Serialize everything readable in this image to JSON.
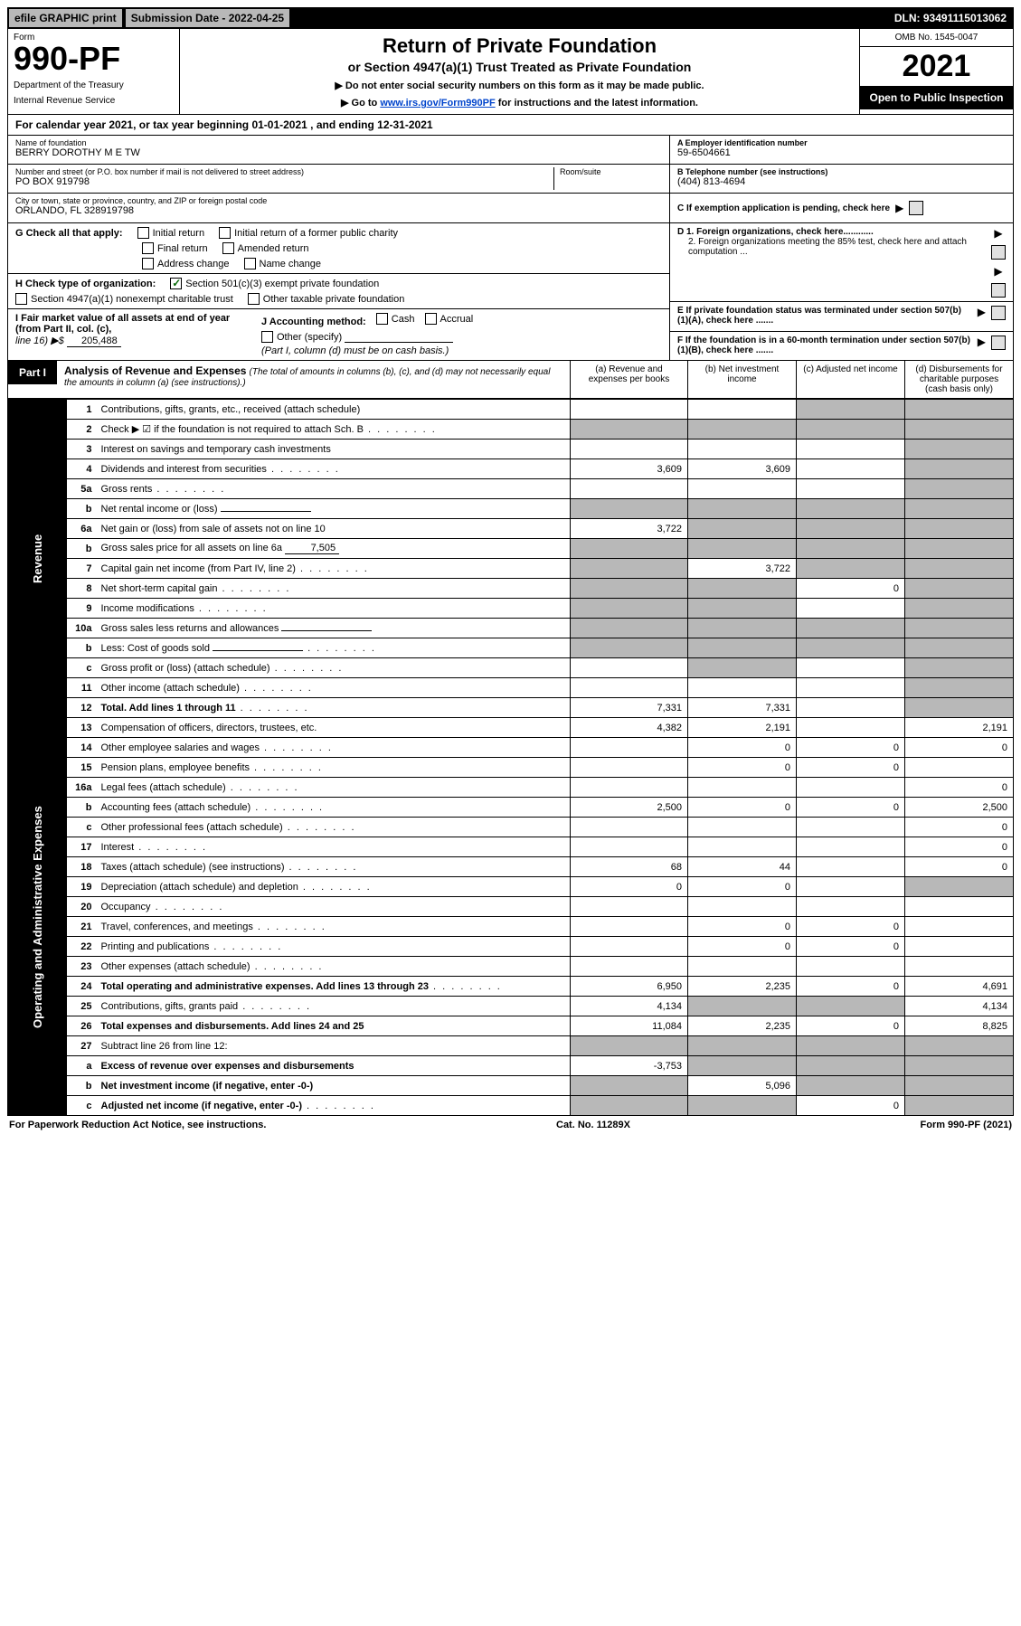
{
  "topbar": {
    "efile": "efile GRAPHIC print",
    "subdate_label": "Submission Date - 2022-04-25",
    "dln": "DLN: 93491115013062"
  },
  "header": {
    "form_label": "Form",
    "form_number": "990-PF",
    "dept1": "Department of the Treasury",
    "dept2": "Internal Revenue Service",
    "title": "Return of Private Foundation",
    "subtitle": "or Section 4947(a)(1) Trust Treated as Private Foundation",
    "note1": "▶ Do not enter social security numbers on this form as it may be made public.",
    "note2_pre": "▶ Go to ",
    "note2_link": "www.irs.gov/Form990PF",
    "note2_post": " for instructions and the latest information.",
    "omb": "OMB No. 1545-0047",
    "year": "2021",
    "open_public": "Open to Public Inspection"
  },
  "cal_year": "For calendar year 2021, or tax year beginning 01-01-2021            , and ending 12-31-2021",
  "info": {
    "name_lbl": "Name of foundation",
    "name_val": "BERRY DOROTHY M E TW",
    "addr_lbl": "Number and street (or P.O. box number if mail is not delivered to street address)",
    "addr_val": "PO BOX 919798",
    "room_lbl": "Room/suite",
    "city_lbl": "City or town, state or province, country, and ZIP or foreign postal code",
    "city_val": "ORLANDO, FL  328919798",
    "a_lbl": "A Employer identification number",
    "a_val": "59-6504661",
    "b_lbl": "B Telephone number (see instructions)",
    "b_val": "(404) 813-4694",
    "c_lbl": "C If exemption application is pending, check here",
    "d1_lbl": "D 1. Foreign organizations, check here............",
    "d2_lbl": "2. Foreign organizations meeting the 85% test, check here and attach computation ...",
    "e_lbl": "E  If private foundation status was terminated under section 507(b)(1)(A), check here .......",
    "f_lbl": "F  If the foundation is in a 60-month termination under section 507(b)(1)(B), check here .......",
    "g_lbl": "G Check all that apply:",
    "g_initial": "Initial return",
    "g_initial_former": "Initial return of a former public charity",
    "g_final": "Final return",
    "g_amended": "Amended return",
    "g_address": "Address change",
    "g_name": "Name change",
    "h_lbl": "H Check type of organization:",
    "h_501c3": "Section 501(c)(3) exempt private foundation",
    "h_4947": "Section 4947(a)(1) nonexempt charitable trust",
    "h_other": "Other taxable private foundation",
    "i_lbl": "I Fair market value of all assets at end of year (from Part II, col. (c),",
    "i_line16": "line 16) ▶$",
    "i_val": "205,488",
    "j_lbl": "J Accounting method:",
    "j_cash": "Cash",
    "j_accrual": "Accrual",
    "j_other": "Other (specify)",
    "j_note": "(Part I, column (d) must be on cash basis.)"
  },
  "part1": {
    "label": "Part I",
    "title": "Analysis of Revenue and Expenses",
    "subtitle": "(The total of amounts in columns (b), (c), and (d) may not necessarily equal the amounts in column (a) (see instructions).)",
    "col_a": "(a)  Revenue and expenses per books",
    "col_b": "(b)  Net investment income",
    "col_c": "(c)  Adjusted net income",
    "col_d": "(d)  Disbursements for charitable purposes (cash basis only)"
  },
  "side_labels": {
    "revenue": "Revenue",
    "expenses": "Operating and Administrative Expenses"
  },
  "rows": [
    {
      "n": "1",
      "desc": "Contributions, gifts, grants, etc., received (attach schedule)",
      "a": "",
      "b": "",
      "c": "",
      "d": "",
      "d_shaded": true,
      "c_shaded": true
    },
    {
      "n": "2",
      "desc": "Check ▶ ☑ if the foundation is not required to attach Sch. B",
      "dots": true,
      "a": "",
      "b": "",
      "c": "",
      "d": "",
      "all_shaded": true
    },
    {
      "n": "3",
      "desc": "Interest on savings and temporary cash investments",
      "a": "",
      "b": "",
      "c": "",
      "d": "",
      "d_shaded": true
    },
    {
      "n": "4",
      "desc": "Dividends and interest from securities",
      "dots": true,
      "a": "3,609",
      "b": "3,609",
      "c": "",
      "d": "",
      "d_shaded": true
    },
    {
      "n": "5a",
      "desc": "Gross rents",
      "dots": true,
      "a": "",
      "b": "",
      "c": "",
      "d": "",
      "d_shaded": true
    },
    {
      "n": "b",
      "desc": "Net rental income or (loss)",
      "inline_box": "",
      "a": "",
      "b": "",
      "c": "",
      "d": "",
      "abcd_shaded": true
    },
    {
      "n": "6a",
      "desc": "Net gain or (loss) from sale of assets not on line 10",
      "a": "3,722",
      "b": "",
      "c": "",
      "d": "",
      "bcd_shaded": true
    },
    {
      "n": "b",
      "desc": "Gross sales price for all assets on line 6a",
      "inline_val": "7,505",
      "a": "",
      "b": "",
      "c": "",
      "d": "",
      "abcd_shaded": true
    },
    {
      "n": "7",
      "desc": "Capital gain net income (from Part IV, line 2)",
      "dots": true,
      "a": "",
      "b": "3,722",
      "c": "",
      "d": "",
      "a_shaded": true,
      "cd_shaded": true
    },
    {
      "n": "8",
      "desc": "Net short-term capital gain",
      "dots": true,
      "a": "",
      "b": "",
      "c": "0",
      "d": "",
      "ab_shaded": true,
      "d_shaded": true
    },
    {
      "n": "9",
      "desc": "Income modifications",
      "dots": true,
      "a": "",
      "b": "",
      "c": "",
      "d": "",
      "ab_shaded": true,
      "d_shaded": true
    },
    {
      "n": "10a",
      "desc": "Gross sales less returns and allowances",
      "inline_box": "",
      "a": "",
      "b": "",
      "c": "",
      "d": "",
      "abcd_shaded": true
    },
    {
      "n": "b",
      "desc": "Less: Cost of goods sold",
      "dots": true,
      "inline_box": "",
      "a": "",
      "b": "",
      "c": "",
      "d": "",
      "abcd_shaded": true
    },
    {
      "n": "c",
      "desc": "Gross profit or (loss) (attach schedule)",
      "dots": true,
      "a": "",
      "b": "",
      "c": "",
      "d": "",
      "b_shaded": true,
      "d_shaded": true
    },
    {
      "n": "11",
      "desc": "Other income (attach schedule)",
      "dots": true,
      "a": "",
      "b": "",
      "c": "",
      "d": "",
      "d_shaded": true
    },
    {
      "n": "12",
      "desc": "Total. Add lines 1 through 11",
      "dots": true,
      "bold": true,
      "a": "7,331",
      "b": "7,331",
      "c": "",
      "d": "",
      "d_shaded": true
    },
    {
      "n": "13",
      "desc": "Compensation of officers, directors, trustees, etc.",
      "a": "4,382",
      "b": "2,191",
      "c": "",
      "d": "2,191"
    },
    {
      "n": "14",
      "desc": "Other employee salaries and wages",
      "dots": true,
      "a": "",
      "b": "0",
      "c": "0",
      "d": "0"
    },
    {
      "n": "15",
      "desc": "Pension plans, employee benefits",
      "dots": true,
      "a": "",
      "b": "0",
      "c": "0",
      "d": ""
    },
    {
      "n": "16a",
      "desc": "Legal fees (attach schedule)",
      "dots": true,
      "a": "",
      "b": "",
      "c": "",
      "d": "0"
    },
    {
      "n": "b",
      "desc": "Accounting fees (attach schedule)",
      "dots": true,
      "a": "2,500",
      "b": "0",
      "c": "0",
      "d": "2,500"
    },
    {
      "n": "c",
      "desc": "Other professional fees (attach schedule)",
      "dots": true,
      "a": "",
      "b": "",
      "c": "",
      "d": "0"
    },
    {
      "n": "17",
      "desc": "Interest",
      "dots": true,
      "a": "",
      "b": "",
      "c": "",
      "d": "0"
    },
    {
      "n": "18",
      "desc": "Taxes (attach schedule) (see instructions)",
      "dots": true,
      "a": "68",
      "b": "44",
      "c": "",
      "d": "0"
    },
    {
      "n": "19",
      "desc": "Depreciation (attach schedule) and depletion",
      "dots": true,
      "a": "0",
      "b": "0",
      "c": "",
      "d": "",
      "d_shaded": true
    },
    {
      "n": "20",
      "desc": "Occupancy",
      "dots": true,
      "a": "",
      "b": "",
      "c": "",
      "d": ""
    },
    {
      "n": "21",
      "desc": "Travel, conferences, and meetings",
      "dots": true,
      "a": "",
      "b": "0",
      "c": "0",
      "d": ""
    },
    {
      "n": "22",
      "desc": "Printing and publications",
      "dots": true,
      "a": "",
      "b": "0",
      "c": "0",
      "d": ""
    },
    {
      "n": "23",
      "desc": "Other expenses (attach schedule)",
      "dots": true,
      "a": "",
      "b": "",
      "c": "",
      "d": ""
    },
    {
      "n": "24",
      "desc": "Total operating and administrative expenses. Add lines 13 through 23",
      "dots": true,
      "bold": true,
      "a": "6,950",
      "b": "2,235",
      "c": "0",
      "d": "4,691"
    },
    {
      "n": "25",
      "desc": "Contributions, gifts, grants paid",
      "dots": true,
      "a": "4,134",
      "b": "",
      "c": "",
      "d": "4,134",
      "bc_shaded": true
    },
    {
      "n": "26",
      "desc": "Total expenses and disbursements. Add lines 24 and 25",
      "bold": true,
      "a": "11,084",
      "b": "2,235",
      "c": "0",
      "d": "8,825"
    },
    {
      "n": "27",
      "desc": "Subtract line 26 from line 12:",
      "a": "",
      "b": "",
      "c": "",
      "d": "",
      "abcd_shaded": true
    },
    {
      "n": "a",
      "desc": "Excess of revenue over expenses and disbursements",
      "bold": true,
      "a": "-3,753",
      "b": "",
      "c": "",
      "d": "",
      "bcd_shaded": true
    },
    {
      "n": "b",
      "desc": "Net investment income (if negative, enter -0-)",
      "bold": true,
      "a": "",
      "b": "5,096",
      "c": "",
      "d": "",
      "a_shaded": true,
      "cd_shaded": true
    },
    {
      "n": "c",
      "desc": "Adjusted net income (if negative, enter -0-)",
      "dots": true,
      "bold": true,
      "a": "",
      "b": "",
      "c": "0",
      "d": "",
      "ab_shaded": true,
      "d_shaded": true
    }
  ],
  "footer": {
    "paperwork": "For Paperwork Reduction Act Notice, see instructions.",
    "catno": "Cat. No. 11289X",
    "formrev": "Form 990-PF (2021)"
  }
}
